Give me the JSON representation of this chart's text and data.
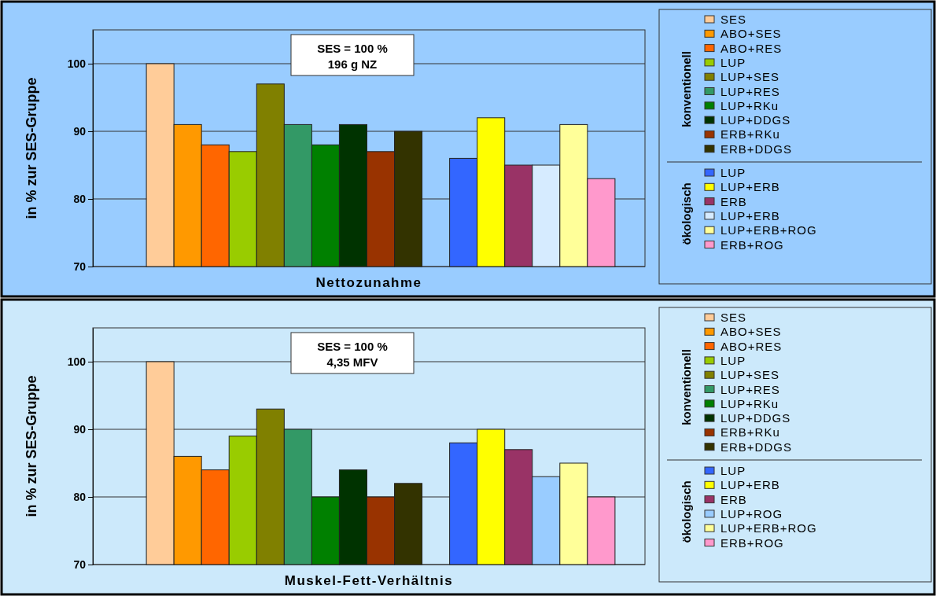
{
  "chart_data": [
    {
      "type": "bar",
      "xlabel": "Nettozunahme",
      "ylabel": "in % zur SES-Gruppe",
      "categories": [
        null
      ],
      "series": [
        {
          "name": "SES",
          "color": "#ffcc99",
          "values": [
            100
          ]
        },
        {
          "name": "ABO+SES",
          "color": "#ff9900",
          "values": [
            91
          ]
        },
        {
          "name": "ABO+RES",
          "color": "#ff6600",
          "values": [
            88
          ]
        },
        {
          "name": "LUP",
          "color": "#99cc00",
          "values": [
            87
          ]
        },
        {
          "name": "LUP+SES",
          "color": "#808000",
          "values": [
            97
          ]
        },
        {
          "name": "LUP+RES",
          "color": "#339966",
          "values": [
            91
          ]
        },
        {
          "name": "LUP+RKu",
          "color": "#008000",
          "values": [
            88
          ]
        },
        {
          "name": "LUP+DDGS",
          "color": "#003300",
          "values": [
            91
          ]
        },
        {
          "name": "ERB+RKu",
          "color": "#993300",
          "values": [
            87
          ]
        },
        {
          "name": "ERB+DDGS",
          "color": "#333300",
          "values": [
            90
          ]
        },
        {
          "values": [
            null
          ]
        },
        {
          "name": "LUP",
          "color": "#3366ff",
          "values": [
            86
          ]
        },
        {
          "name": "LUP+ERB",
          "color": "#ffff00",
          "values": [
            92
          ]
        },
        {
          "name": "ERB",
          "color": "#993366",
          "values": [
            85
          ]
        },
        {
          "name": "LUP+ERB",
          "color": "#d6ebff",
          "values": [
            85
          ]
        },
        {
          "name": "LUP+ERB+ROG",
          "color": "#ffff99",
          "values": [
            91
          ]
        },
        {
          "name": "ERB+ROG",
          "color": "#ff99cc",
          "values": [
            83
          ]
        }
      ],
      "ylim": [
        70,
        105
      ],
      "yticks": [
        70,
        80,
        90,
        100
      ],
      "grid": "y",
      "legend": "right",
      "annotations": [
        "SES = 100 %\n196 g NZ",
        "konventionell",
        "ökologisch"
      ]
    },
    {
      "type": "bar",
      "xlabel": "Muskel-Fett-Verhältnis",
      "ylabel": "in % zur SES-Gruppe",
      "categories": [
        null
      ],
      "series": [
        {
          "name": "SES",
          "color": "#ffcc99",
          "values": [
            100
          ]
        },
        {
          "name": "ABO+SES",
          "color": "#ff9900",
          "values": [
            86
          ]
        },
        {
          "name": "ABO+RES",
          "color": "#ff6600",
          "values": [
            84
          ]
        },
        {
          "name": "LUP",
          "color": "#99cc00",
          "values": [
            89
          ]
        },
        {
          "name": "LUP+SES",
          "color": "#808000",
          "values": [
            93
          ]
        },
        {
          "name": "LUP+RES",
          "color": "#339966",
          "values": [
            90
          ]
        },
        {
          "name": "LUP+RKu",
          "color": "#008000",
          "values": [
            80
          ]
        },
        {
          "name": "LUP+DDGS",
          "color": "#003300",
          "values": [
            84
          ]
        },
        {
          "name": "ERB+RKu",
          "color": "#993300",
          "values": [
            80
          ]
        },
        {
          "name": "ERB+DDGS",
          "color": "#333300",
          "values": [
            82
          ]
        },
        {
          "values": [
            null
          ]
        },
        {
          "name": "LUP",
          "color": "#3366ff",
          "values": [
            88
          ]
        },
        {
          "name": "LUP+ERB",
          "color": "#ffff00",
          "values": [
            90
          ]
        },
        {
          "name": "ERB",
          "color": "#993366",
          "values": [
            87
          ]
        },
        {
          "name": "LUP+ROG",
          "color": "#99ccff",
          "values": [
            83
          ]
        },
        {
          "name": "LUP+ERB+ROG",
          "color": "#ffff99",
          "values": [
            85
          ]
        },
        {
          "name": "ERB+ROG",
          "color": "#ff99cc",
          "values": [
            80
          ]
        }
      ],
      "ylim": [
        70,
        105
      ],
      "yticks": [
        70,
        80,
        90,
        100
      ],
      "grid": "y",
      "legend": "right",
      "annotations": [
        "SES = 100 %\n4,35 MFV",
        "konventionell",
        "ökologisch"
      ]
    }
  ]
}
